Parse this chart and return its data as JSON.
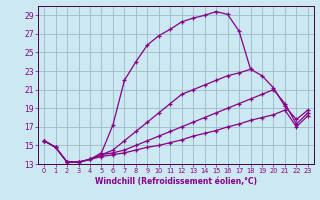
{
  "xlabel": "Windchill (Refroidissement éolien,°C)",
  "bg_color": "#cce8f0",
  "line_color": "#880088",
  "grid_color": "#99bbcc",
  "axis_color": "#440044",
  "xlim": [
    -0.5,
    23.5
  ],
  "ylim": [
    13,
    30
  ],
  "yticks": [
    13,
    15,
    17,
    19,
    21,
    23,
    25,
    27,
    29
  ],
  "xticks": [
    0,
    1,
    2,
    3,
    4,
    5,
    6,
    7,
    8,
    9,
    10,
    11,
    12,
    13,
    14,
    15,
    16,
    17,
    18,
    19,
    20,
    21,
    22,
    23
  ],
  "lines": [
    {
      "x": [
        0,
        1,
        2,
        3,
        4,
        5,
        6,
        7,
        8,
        9,
        10,
        11,
        12,
        13,
        14,
        15,
        16,
        17,
        18
      ],
      "y": [
        15.5,
        14.8,
        13.2,
        13.2,
        13.5,
        14.2,
        17.2,
        22.0,
        24.0,
        25.8,
        26.8,
        27.5,
        28.3,
        28.7,
        29.0,
        29.4,
        29.1,
        27.3,
        23.2
      ]
    },
    {
      "x": [
        0,
        1,
        2,
        3,
        4,
        5,
        6,
        7,
        8,
        9,
        10,
        11,
        12,
        13,
        14,
        15,
        16,
        17,
        18,
        19,
        20,
        21,
        22,
        23
      ],
      "y": [
        15.5,
        14.8,
        13.2,
        13.2,
        13.5,
        14.0,
        14.5,
        15.5,
        16.5,
        17.5,
        18.5,
        19.5,
        20.5,
        21.0,
        21.5,
        22.0,
        22.5,
        22.8,
        23.2,
        22.5,
        21.2,
        19.2,
        17.8,
        18.8
      ]
    },
    {
      "x": [
        0,
        1,
        2,
        3,
        4,
        5,
        6,
        7,
        8,
        9,
        10,
        11,
        12,
        13,
        14,
        15,
        16,
        17,
        18,
        19,
        20,
        21,
        22,
        23
      ],
      "y": [
        15.5,
        14.8,
        13.2,
        13.2,
        13.5,
        14.0,
        14.2,
        14.5,
        15.0,
        15.5,
        16.0,
        16.5,
        17.0,
        17.5,
        18.0,
        18.5,
        19.0,
        19.5,
        20.0,
        20.5,
        21.0,
        19.5,
        17.3,
        18.5
      ]
    },
    {
      "x": [
        0,
        1,
        2,
        3,
        4,
        5,
        6,
        7,
        8,
        9,
        10,
        11,
        12,
        13,
        14,
        15,
        16,
        17,
        18,
        19,
        20,
        21,
        22,
        23
      ],
      "y": [
        15.5,
        14.8,
        13.2,
        13.2,
        13.5,
        13.8,
        14.0,
        14.2,
        14.5,
        14.8,
        15.0,
        15.3,
        15.6,
        16.0,
        16.3,
        16.6,
        17.0,
        17.3,
        17.7,
        18.0,
        18.3,
        18.8,
        17.0,
        18.2
      ]
    }
  ]
}
